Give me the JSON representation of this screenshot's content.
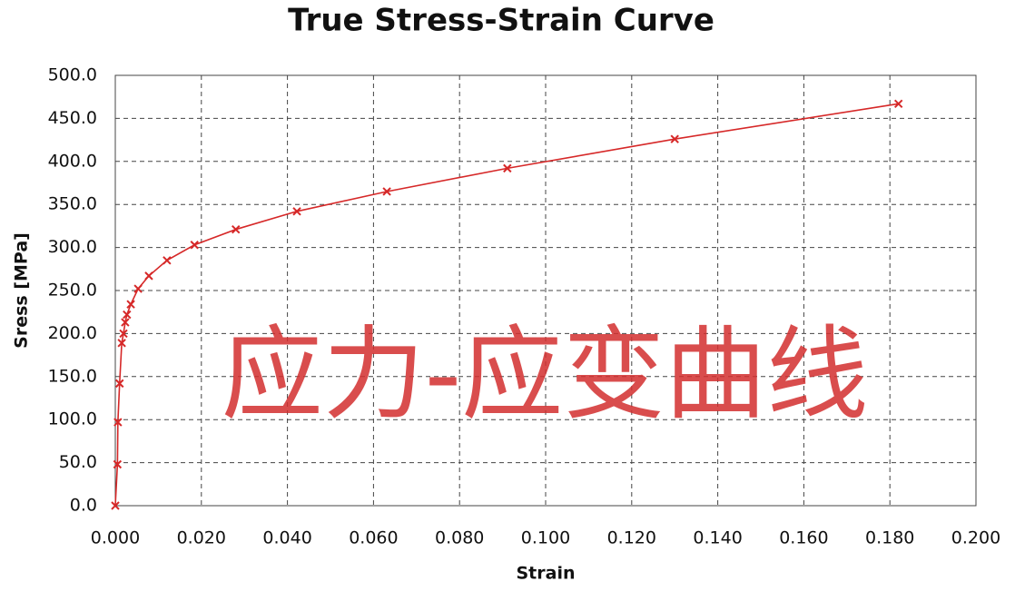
{
  "chart_data": {
    "type": "line",
    "title": "True Stress-Strain Curve",
    "x_label": "Strain",
    "y_label": "Sress [MPa]",
    "annotation": "应力-应变曲线",
    "xlim": [
      0,
      0.2
    ],
    "ylim": [
      0,
      500
    ],
    "grid": true,
    "xticks": [
      {
        "value": 0,
        "label": "0.000"
      },
      {
        "value": 0.02,
        "label": "0.020"
      },
      {
        "value": 0.04,
        "label": "0.040"
      },
      {
        "value": 0.06,
        "label": "0.060"
      },
      {
        "value": 0.08,
        "label": "0.080"
      },
      {
        "value": 0.1,
        "label": "0.100"
      },
      {
        "value": 0.12,
        "label": "0.120"
      },
      {
        "value": 0.14,
        "label": "0.140"
      },
      {
        "value": 0.16,
        "label": "0.160"
      },
      {
        "value": 0.18,
        "label": "0.180"
      },
      {
        "value": 0.2,
        "label": "0.200"
      }
    ],
    "yticks": [
      {
        "value": 0,
        "label": "0.0"
      },
      {
        "value": 50,
        "label": "50.0"
      },
      {
        "value": 100,
        "label": "100.0"
      },
      {
        "value": 150,
        "label": "150.0"
      },
      {
        "value": 200,
        "label": "200.0"
      },
      {
        "value": 250,
        "label": "250.0"
      },
      {
        "value": 300,
        "label": "300.0"
      },
      {
        "value": 350,
        "label": "350.0"
      },
      {
        "value": 400,
        "label": "400.0"
      },
      {
        "value": 450,
        "label": "450.0"
      },
      {
        "value": 500,
        "label": "500.0"
      }
    ],
    "x": [
      0,
      0.0005,
      0.0006,
      0.001,
      0.0015,
      0.0019,
      0.0023,
      0.0027,
      0.0036,
      0.0053,
      0.0078,
      0.012,
      0.0184,
      0.028,
      0.0422,
      0.0631,
      0.0911,
      0.13,
      0.182
    ],
    "series": [
      {
        "color": "#d62828",
        "values": [
          0,
          48,
          97,
          142,
          189,
          200,
          213,
          222,
          234,
          252,
          267,
          285,
          303,
          321,
          342,
          365,
          392,
          426,
          467
        ]
      }
    ]
  }
}
